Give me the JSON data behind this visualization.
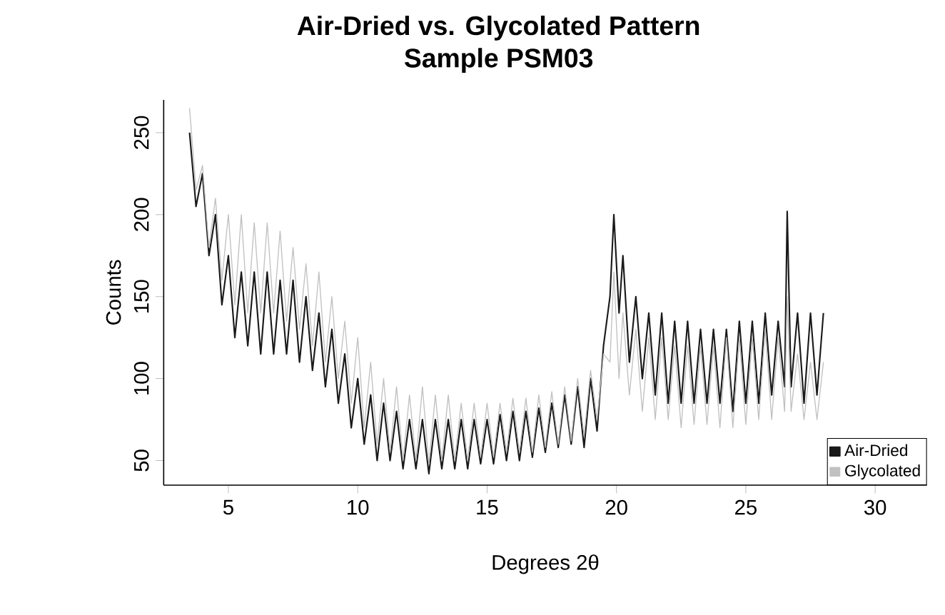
{
  "chart_data": {
    "type": "line",
    "title": "Air-Dried vs. Glycolated Pattern",
    "subtitle": "Sample PSM03",
    "xlabel": "Degrees 2θ",
    "ylabel": "Counts",
    "x": [
      3.5,
      3.75,
      4.0,
      4.25,
      4.5,
      4.75,
      5.0,
      5.25,
      5.5,
      5.75,
      6.0,
      6.25,
      6.5,
      6.75,
      7.0,
      7.25,
      7.5,
      7.75,
      8.0,
      8.25,
      8.5,
      8.75,
      9.0,
      9.25,
      9.5,
      9.75,
      10.0,
      10.25,
      10.5,
      10.75,
      11.0,
      11.25,
      11.5,
      11.75,
      12.0,
      12.25,
      12.5,
      12.75,
      13.0,
      13.25,
      13.5,
      13.75,
      14.0,
      14.25,
      14.5,
      14.75,
      15.0,
      15.25,
      15.5,
      15.75,
      16.0,
      16.25,
      16.5,
      16.75,
      17.0,
      17.25,
      17.5,
      17.75,
      18.0,
      18.25,
      18.5,
      18.75,
      19.0,
      19.25,
      19.5,
      19.75,
      19.9,
      20.1,
      20.25,
      20.5,
      20.75,
      21.0,
      21.25,
      21.5,
      21.75,
      22.0,
      22.25,
      22.5,
      22.75,
      23.0,
      23.25,
      23.5,
      23.75,
      24.0,
      24.25,
      24.5,
      24.75,
      25.0,
      25.25,
      25.5,
      25.75,
      26.0,
      26.25,
      26.5,
      26.6,
      26.75,
      27.0,
      27.25,
      27.5,
      27.75,
      28.0
    ],
    "series": [
      {
        "name": "Air-Dried",
        "color": "#1a1a1a",
        "values": [
          250,
          205,
          225,
          175,
          200,
          145,
          175,
          125,
          165,
          120,
          165,
          115,
          165,
          115,
          160,
          115,
          160,
          110,
          150,
          105,
          140,
          95,
          130,
          85,
          115,
          70,
          100,
          60,
          90,
          50,
          85,
          50,
          80,
          45,
          75,
          45,
          75,
          42,
          75,
          45,
          75,
          45,
          75,
          45,
          75,
          48,
          75,
          48,
          78,
          50,
          80,
          50,
          80,
          52,
          82,
          55,
          85,
          58,
          90,
          60,
          95,
          58,
          100,
          68,
          120,
          150,
          200,
          140,
          175,
          110,
          150,
          100,
          140,
          90,
          140,
          85,
          135,
          85,
          135,
          85,
          130,
          85,
          130,
          85,
          130,
          80,
          135,
          85,
          135,
          85,
          140,
          90,
          135,
          95,
          202,
          95,
          140,
          85,
          140,
          90,
          140
        ]
      },
      {
        "name": "Glycolated",
        "color": "#c0c0c0",
        "values": [
          265,
          215,
          230,
          180,
          210,
          160,
          200,
          145,
          200,
          140,
          195,
          140,
          195,
          140,
          190,
          135,
          180,
          130,
          170,
          120,
          165,
          110,
          150,
          100,
          135,
          85,
          125,
          70,
          110,
          60,
          100,
          55,
          95,
          50,
          90,
          50,
          95,
          48,
          90,
          50,
          90,
          50,
          85,
          50,
          85,
          52,
          85,
          52,
          85,
          55,
          88,
          55,
          88,
          55,
          90,
          58,
          92,
          60,
          95,
          62,
          100,
          65,
          105,
          75,
          115,
          110,
          165,
          100,
          140,
          90,
          130,
          80,
          125,
          75,
          125,
          75,
          120,
          70,
          120,
          72,
          120,
          72,
          120,
          70,
          125,
          70,
          125,
          72,
          125,
          75,
          130,
          75,
          125,
          80,
          150,
          80,
          115,
          75,
          110,
          75,
          110
        ]
      }
    ],
    "xlim": [
      2.5,
      32
    ],
    "ylim": [
      35,
      270
    ],
    "xticks": [
      5,
      10,
      15,
      20,
      25,
      30
    ],
    "yticks": [
      50,
      100,
      150,
      200,
      250
    ],
    "legend": "bottom right",
    "marker": "none",
    "line_style": "solid",
    "grid": false
  }
}
